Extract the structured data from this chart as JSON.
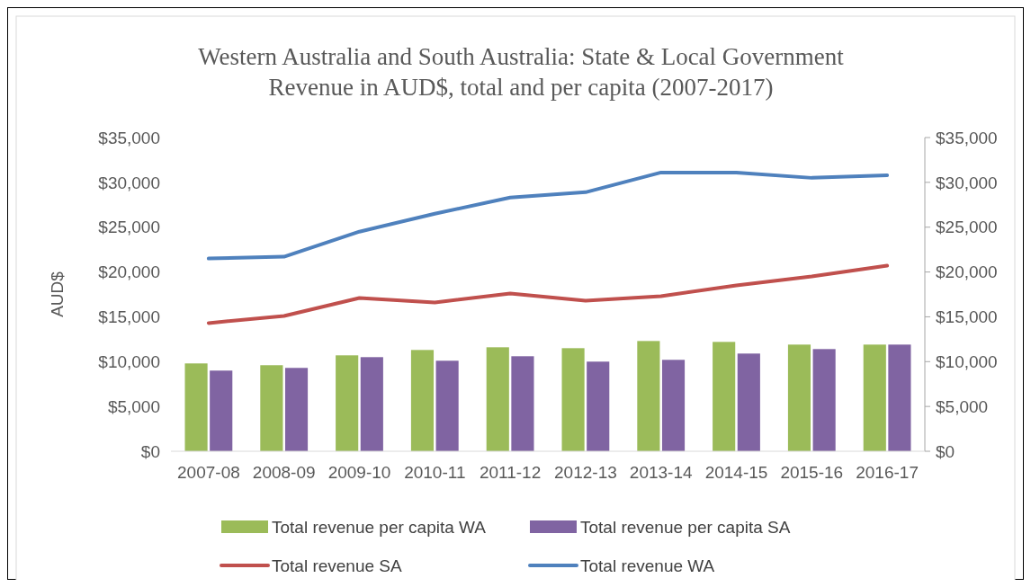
{
  "chart_data": {
    "type": "bar",
    "title": "Western Australia and South Australia: State & Local Government Revenue in AUD$, total and per capita (2007-2017)",
    "ylabel": "AUD$",
    "categories": [
      "2007-08",
      "2008-09",
      "2009-10",
      "2010-11",
      "2011-12",
      "2012-13",
      "2013-14",
      "2014-15",
      "2015-16",
      "2016-17"
    ],
    "series": [
      {
        "name": "Total revenue per capita WA",
        "color": "#9bbb59",
        "values": [
          9800,
          9600,
          10700,
          11300,
          11600,
          11500,
          12300,
          12200,
          11900,
          11900
        ]
      },
      {
        "name": "Total revenue per capita SA",
        "color": "#8064a2",
        "values": [
          9000,
          9300,
          10500,
          10100,
          10600,
          10000,
          10200,
          10900,
          11400,
          11900
        ]
      },
      {
        "name": "Total revenue SA",
        "type": "line",
        "color": "#c0504d",
        "values": [
          14300,
          15100,
          17100,
          16600,
          17600,
          16800,
          17300,
          18500,
          19500,
          20700
        ]
      },
      {
        "name": "Total revenue WA",
        "type": "line",
        "color": "#4f81bd",
        "values": [
          21500,
          21700,
          24500,
          26500,
          28300,
          28900,
          31100,
          31100,
          30500,
          30800
        ]
      }
    ],
    "ylim": [
      0,
      35000
    ],
    "yticks": [
      {
        "value": 0,
        "label": "$0"
      },
      {
        "value": 5000,
        "label": "$5,000"
      },
      {
        "value": 10000,
        "label": "$10,000"
      },
      {
        "value": 15000,
        "label": "$15,000"
      },
      {
        "value": 20000,
        "label": "$20,000"
      },
      {
        "value": 25000,
        "label": "$25,000"
      },
      {
        "value": 30000,
        "label": "$30,000"
      },
      {
        "value": 35000,
        "label": "$35,000"
      }
    ],
    "y2lim": [
      0,
      35000
    ],
    "y2ticks": [
      {
        "value": 0,
        "label": "$0"
      },
      {
        "value": 5000,
        "label": "$5,000"
      },
      {
        "value": 10000,
        "label": "$10,000"
      },
      {
        "value": 15000,
        "label": "$15,000"
      },
      {
        "value": 20000,
        "label": "$20,000"
      },
      {
        "value": 25000,
        "label": "$25,000"
      },
      {
        "value": 30000,
        "label": "$30,000"
      },
      {
        "value": 35000,
        "label": "$35,000"
      }
    ],
    "legend": "bottom",
    "marker": "none",
    "line_style": "solid"
  }
}
